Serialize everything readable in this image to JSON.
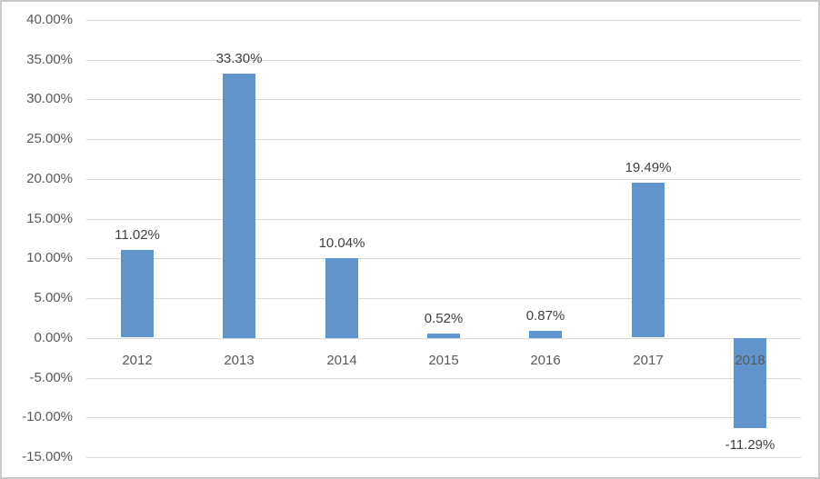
{
  "chart_data": {
    "type": "bar",
    "title": "",
    "xlabel": "",
    "ylabel": "",
    "categories": [
      "2012",
      "2013",
      "2014",
      "2015",
      "2016",
      "2017",
      "2018"
    ],
    "values": [
      11.02,
      33.3,
      10.04,
      0.52,
      0.87,
      19.49,
      -11.29
    ],
    "data_labels": [
      "11.02%",
      "33.30%",
      "10.04%",
      "0.52%",
      "0.87%",
      "19.49%",
      "-11.29%"
    ],
    "ylim": [
      -15,
      40
    ],
    "ytick_step": 5,
    "ytick_labels": [
      "40.00%",
      "35.00%",
      "30.00%",
      "25.00%",
      "20.00%",
      "15.00%",
      "10.00%",
      "5.00%",
      "0.00%",
      "-5.00%",
      "-10.00%",
      "-15.00%"
    ],
    "grid": true,
    "legend_position": "none",
    "colors": {
      "bar": "#6194ca",
      "gridline": "#d9d9d9",
      "axis_text": "#595959",
      "label_text": "#404040",
      "frame_border": "#c9c9c9",
      "background": "#ffffff"
    }
  }
}
